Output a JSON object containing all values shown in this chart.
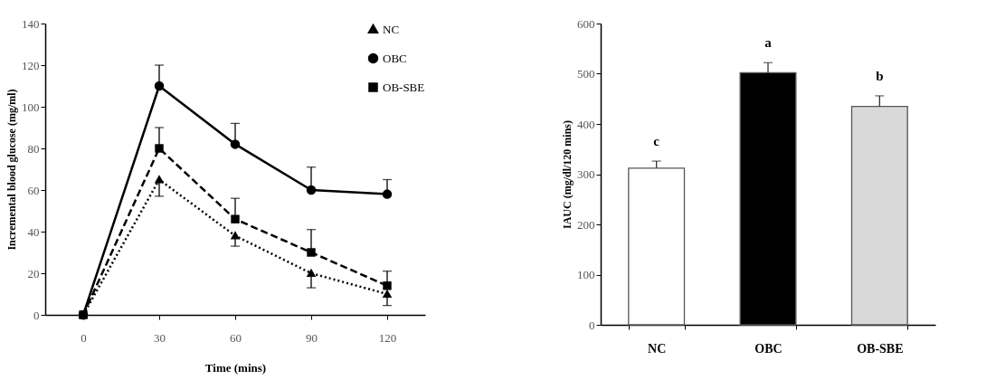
{
  "chart_data": [
    {
      "type": "line",
      "xlabel": "Time (mins)",
      "ylabel": "Incremental blood glucose (mg/ml)",
      "x": [
        0,
        30,
        60,
        90,
        120
      ],
      "xlim": [
        -15,
        135
      ],
      "xticks": [
        0,
        30,
        60,
        90,
        120
      ],
      "ylim": [
        0,
        140
      ],
      "yticks": [
        0,
        20,
        40,
        60,
        80,
        100,
        120,
        140
      ],
      "grid": false,
      "legend": "top right",
      "series": [
        {
          "name": "NC",
          "color": "#000000",
          "marker": "triangle",
          "line_style": "dotted",
          "values": [
            0,
            65,
            38,
            20,
            10
          ],
          "errors": [
            null,
            [
              57,
              65
            ],
            [
              33,
              38
            ],
            [
              13,
              20
            ],
            [
              4.5,
              10
            ]
          ]
        },
        {
          "name": "OBC",
          "color": "#000000",
          "marker": "circle",
          "line_style": "solid",
          "values": [
            0,
            110,
            82,
            60,
            58
          ],
          "errors": [
            null,
            [
              110,
              120
            ],
            [
              82,
              92
            ],
            [
              60,
              71
            ],
            [
              58,
              65
            ]
          ]
        },
        {
          "name": "OB-SBE",
          "color": "#000000",
          "marker": "square",
          "line_style": "dashed",
          "values": [
            0,
            80,
            46,
            30,
            14
          ],
          "errors": [
            null,
            [
              80,
              90
            ],
            [
              46,
              56
            ],
            [
              30,
              41
            ],
            [
              14,
              21
            ]
          ]
        }
      ]
    },
    {
      "type": "bar",
      "ylabel": "IAUC (mg/dl/120 mins)",
      "categories": [
        "NC",
        "OBC",
        "OB-SBE"
      ],
      "values": [
        312,
        502,
        435
      ],
      "colors": [
        "#ffffff",
        "#000000",
        "#d9d9d9"
      ],
      "errors": [
        [
          312,
          326
        ],
        [
          502,
          522
        ],
        [
          435,
          456
        ]
      ],
      "ylim": [
        0,
        600
      ],
      "yticks": [
        0,
        100,
        200,
        300,
        400,
        500,
        600
      ],
      "grid": false,
      "annotations": [
        "c",
        "a",
        "b"
      ]
    }
  ]
}
